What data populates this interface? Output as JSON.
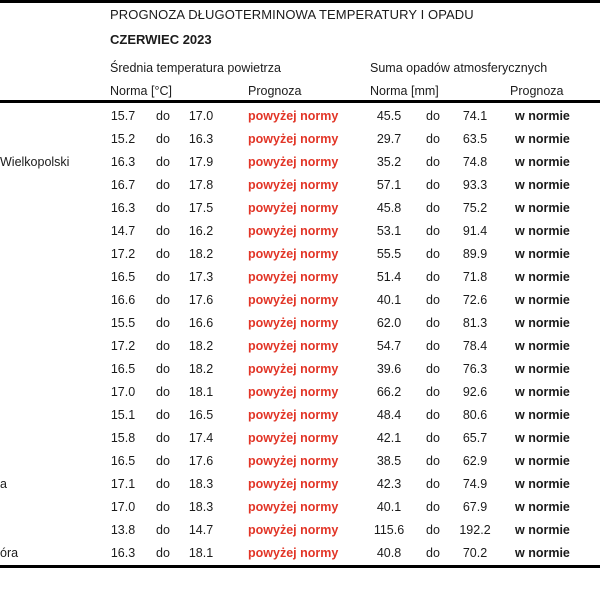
{
  "header": {
    "title": "PROGNOZA DŁUGOTERMINOWA TEMPERATURY I OPADU",
    "subtitle": "CZERWIEC 2023",
    "group_temperature": "Średnia temperatura powietrza",
    "group_precipitation": "Suma opadów atmosferycznych",
    "col_norm_temperature": "Norma [°C]",
    "col_forecast_temperature": "Prognoza",
    "col_norm_precipitation": "Norma [mm]",
    "col_forecast_precipitation": "Prognoza"
  },
  "colors": {
    "forecast_above_norm": "#e23527",
    "text": "#1b1b1b",
    "rule": "#000000"
  },
  "table": {
    "range_separator": "do",
    "rows": [
      {
        "city_fragment": "",
        "t_min": "15.7",
        "t_max": "17.0",
        "t_forecast": "powyżej normy",
        "p_min": "45.5",
        "p_max": "74.1",
        "p_forecast": "w normie"
      },
      {
        "city_fragment": "",
        "t_min": "15.2",
        "t_max": "16.3",
        "t_forecast": "powyżej normy",
        "p_min": "29.7",
        "p_max": "63.5",
        "p_forecast": "w normie"
      },
      {
        "city_fragment": "Wielkopolski",
        "t_min": "16.3",
        "t_max": "17.9",
        "t_forecast": "powyżej normy",
        "p_min": "35.2",
        "p_max": "74.8",
        "p_forecast": "w normie"
      },
      {
        "city_fragment": "",
        "t_min": "16.7",
        "t_max": "17.8",
        "t_forecast": "powyżej normy",
        "p_min": "57.1",
        "p_max": "93.3",
        "p_forecast": "w normie"
      },
      {
        "city_fragment": "",
        "t_min": "16.3",
        "t_max": "17.5",
        "t_forecast": "powyżej normy",
        "p_min": "45.8",
        "p_max": "75.2",
        "p_forecast": "w normie"
      },
      {
        "city_fragment": "",
        "t_min": "14.7",
        "t_max": "16.2",
        "t_forecast": "powyżej normy",
        "p_min": "53.1",
        "p_max": "91.4",
        "p_forecast": "w normie"
      },
      {
        "city_fragment": "",
        "t_min": "17.2",
        "t_max": "18.2",
        "t_forecast": "powyżej normy",
        "p_min": "55.5",
        "p_max": "89.9",
        "p_forecast": "w normie"
      },
      {
        "city_fragment": "",
        "t_min": "16.5",
        "t_max": "17.3",
        "t_forecast": "powyżej normy",
        "p_min": "51.4",
        "p_max": "71.8",
        "p_forecast": "w normie"
      },
      {
        "city_fragment": "",
        "t_min": "16.6",
        "t_max": "17.6",
        "t_forecast": "powyżej normy",
        "p_min": "40.1",
        "p_max": "72.6",
        "p_forecast": "w normie"
      },
      {
        "city_fragment": "",
        "t_min": "15.5",
        "t_max": "16.6",
        "t_forecast": "powyżej normy",
        "p_min": "62.0",
        "p_max": "81.3",
        "p_forecast": "w normie"
      },
      {
        "city_fragment": "",
        "t_min": "17.2",
        "t_max": "18.2",
        "t_forecast": "powyżej normy",
        "p_min": "54.7",
        "p_max": "78.4",
        "p_forecast": "w normie"
      },
      {
        "city_fragment": "",
        "t_min": "16.5",
        "t_max": "18.2",
        "t_forecast": "powyżej normy",
        "p_min": "39.6",
        "p_max": "76.3",
        "p_forecast": "w normie"
      },
      {
        "city_fragment": "",
        "t_min": "17.0",
        "t_max": "18.1",
        "t_forecast": "powyżej normy",
        "p_min": "66.2",
        "p_max": "92.6",
        "p_forecast": "w normie"
      },
      {
        "city_fragment": "",
        "t_min": "15.1",
        "t_max": "16.5",
        "t_forecast": "powyżej normy",
        "p_min": "48.4",
        "p_max": "80.6",
        "p_forecast": "w normie"
      },
      {
        "city_fragment": "",
        "t_min": "15.8",
        "t_max": "17.4",
        "t_forecast": "powyżej normy",
        "p_min": "42.1",
        "p_max": "65.7",
        "p_forecast": "w normie"
      },
      {
        "city_fragment": "",
        "t_min": "16.5",
        "t_max": "17.6",
        "t_forecast": "powyżej normy",
        "p_min": "38.5",
        "p_max": "62.9",
        "p_forecast": "w normie"
      },
      {
        "city_fragment": "a",
        "t_min": "17.1",
        "t_max": "18.3",
        "t_forecast": "powyżej normy",
        "p_min": "42.3",
        "p_max": "74.9",
        "p_forecast": "w normie"
      },
      {
        "city_fragment": "",
        "t_min": "17.0",
        "t_max": "18.3",
        "t_forecast": "powyżej normy",
        "p_min": "40.1",
        "p_max": "67.9",
        "p_forecast": "w normie"
      },
      {
        "city_fragment": "",
        "t_min": "13.8",
        "t_max": "14.7",
        "t_forecast": "powyżej normy",
        "p_min": "115.6",
        "p_max": "192.2",
        "p_forecast": "w normie"
      },
      {
        "city_fragment": "óra",
        "t_min": "16.3",
        "t_max": "18.1",
        "t_forecast": "powyżej normy",
        "p_min": "40.8",
        "p_max": "70.2",
        "p_forecast": "w normie"
      }
    ]
  }
}
